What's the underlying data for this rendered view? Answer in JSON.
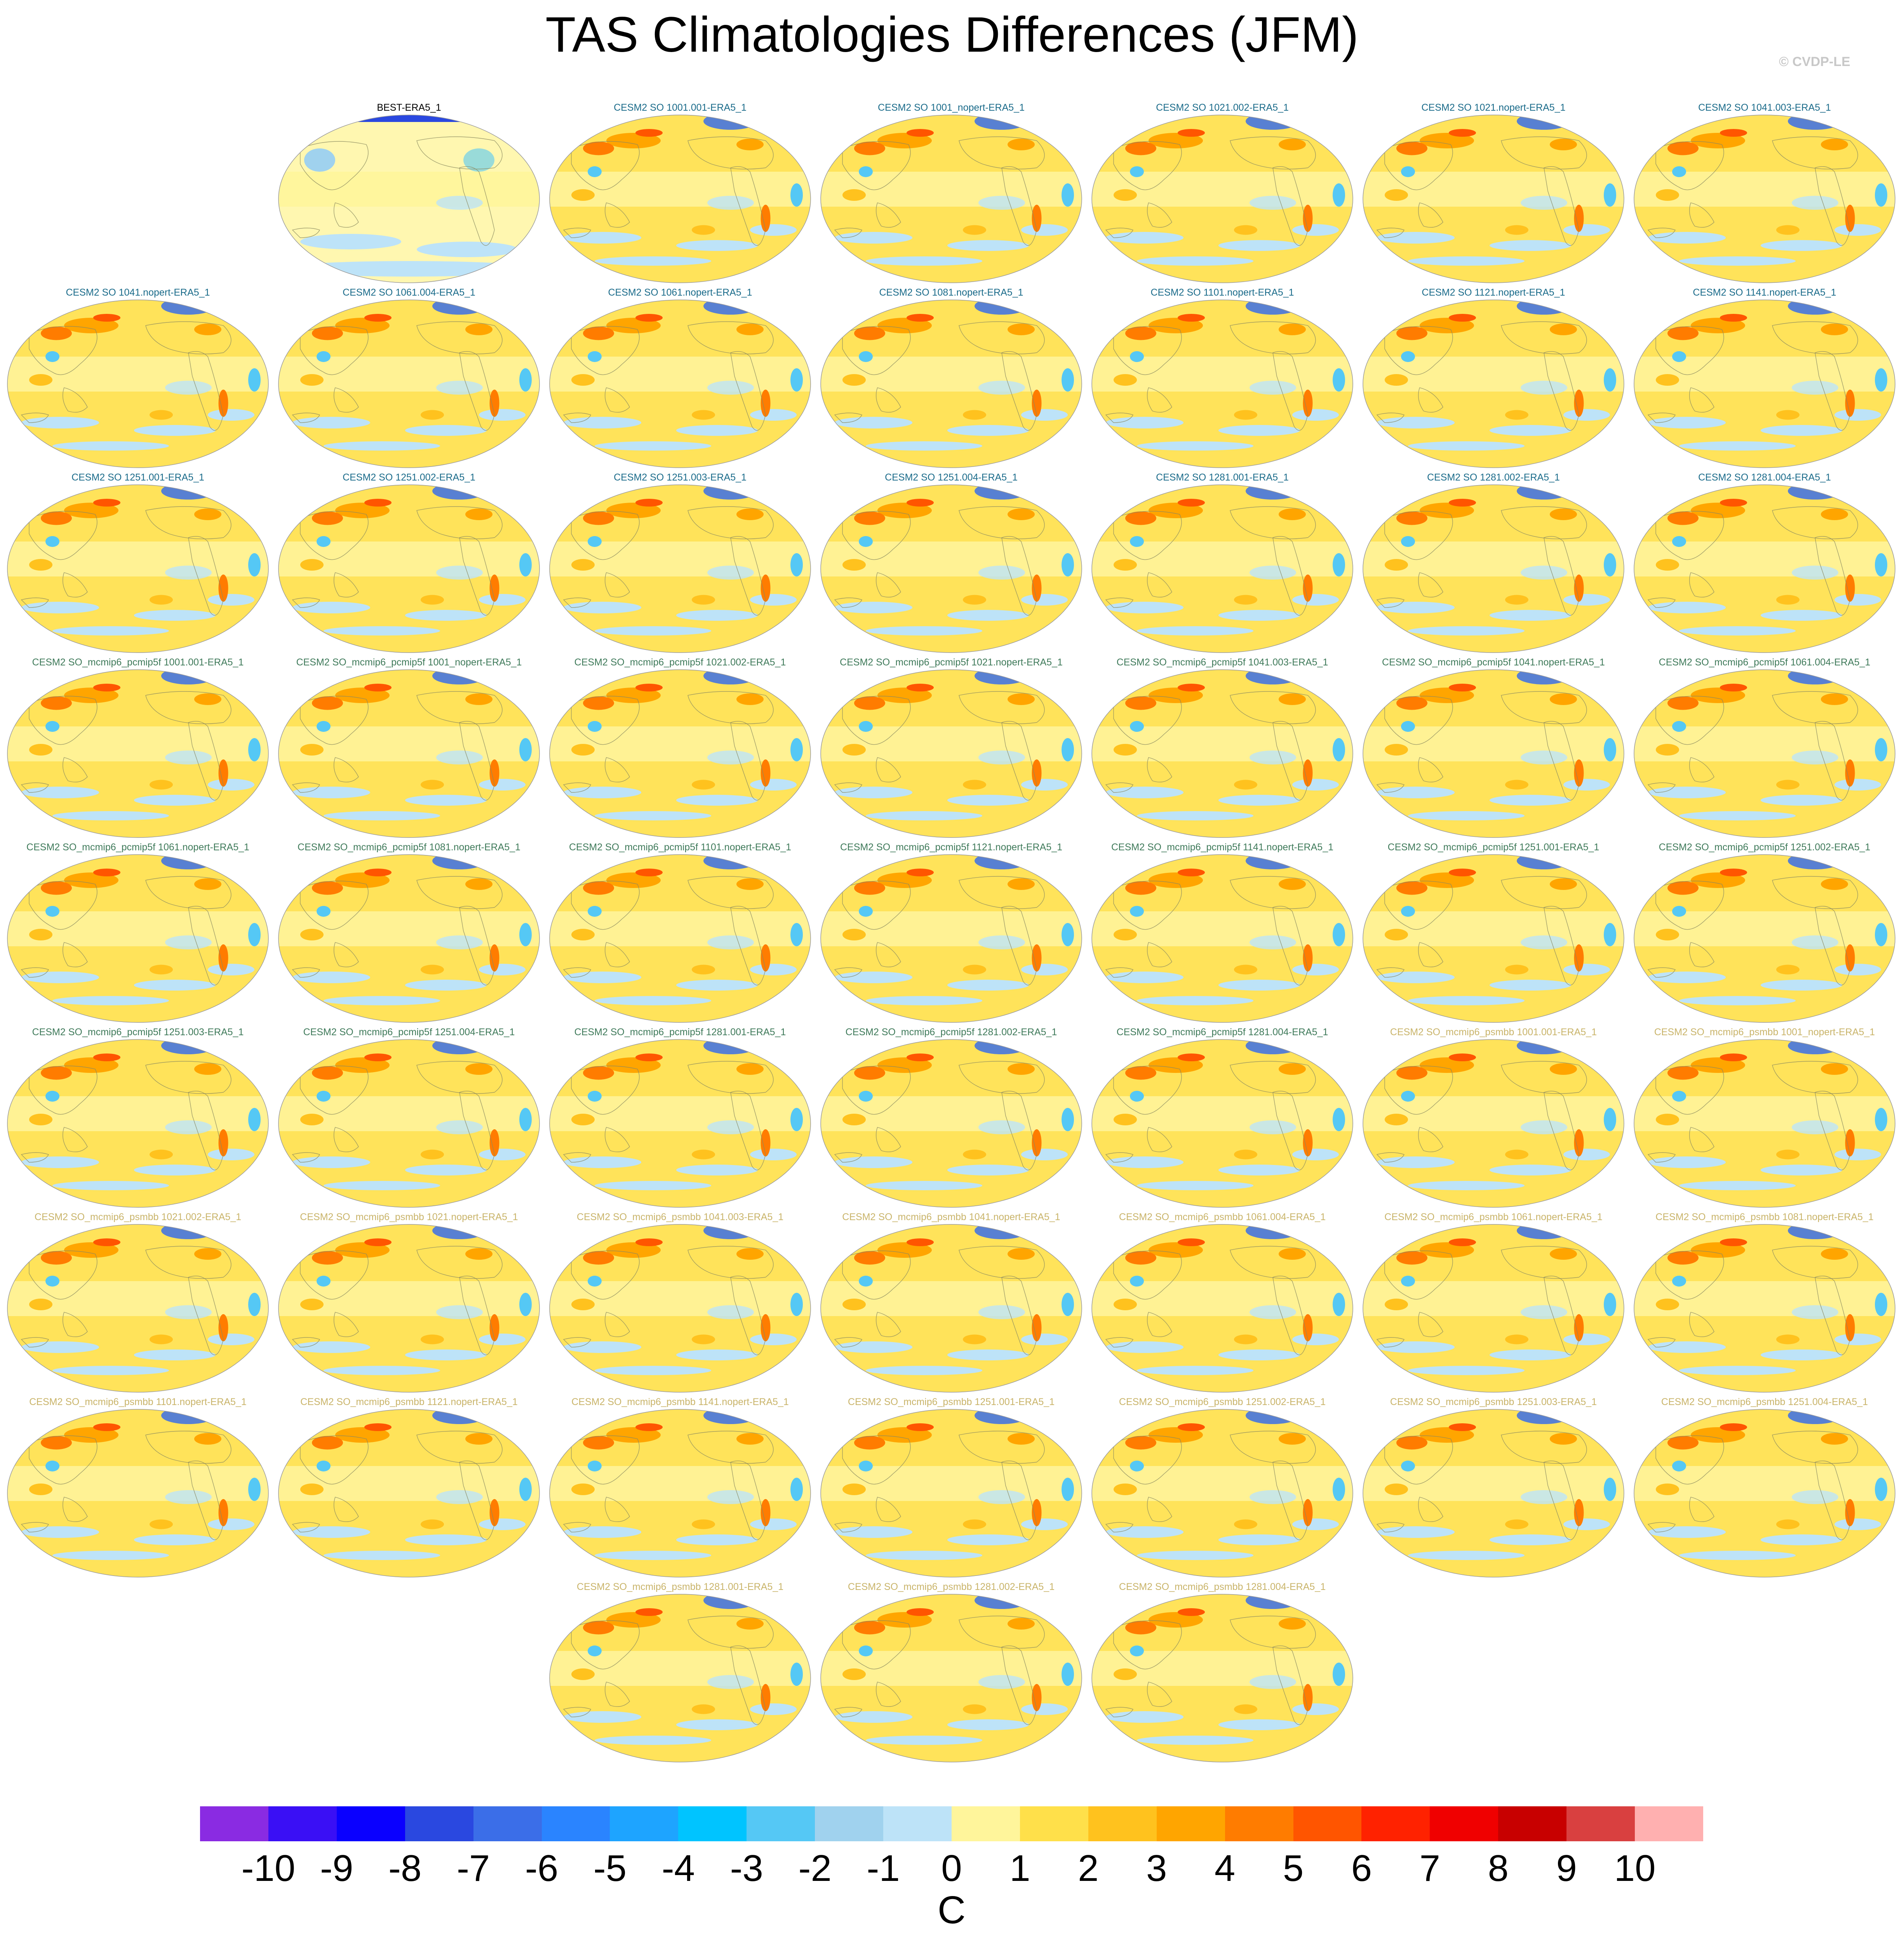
{
  "title": "TAS Climatologies Differences (JFM)",
  "copyright": "© CVDP-LE",
  "colorbar": {
    "units": "C",
    "labels": [
      "-10",
      "-9",
      "-8",
      "-7",
      "-6",
      "-5",
      "-4",
      "-3",
      "-2",
      "-1",
      "0",
      "1",
      "2",
      "3",
      "4",
      "5",
      "6",
      "7",
      "8",
      "9",
      "10"
    ],
    "colors": [
      "#8a2be2",
      "#3a0ff5",
      "#0a00ff",
      "#2a48e0",
      "#3b6ee8",
      "#2a84ff",
      "#1ea4ff",
      "#00c4ff",
      "#55c8f5",
      "#a0d2ee",
      "#bde3f8",
      "#fff59b",
      "#ffe04a",
      "#ffc21e",
      "#ffa500",
      "#ff7c00",
      "#ff5500",
      "#ff2200",
      "#f00000",
      "#c80000",
      "#d94040",
      "#ffb0b0"
    ]
  },
  "panels": [
    {
      "label": "BEST-ERA5_1",
      "style": "obs"
    },
    {
      "label": "CESM2 SO 1001.001-ERA5_1",
      "style": "a"
    },
    {
      "label": "CESM2 SO 1001_nopert-ERA5_1",
      "style": "a"
    },
    {
      "label": "CESM2 SO 1021.002-ERA5_1",
      "style": "a"
    },
    {
      "label": "CESM2 SO 1021.nopert-ERA5_1",
      "style": "a"
    },
    {
      "label": "CESM2 SO 1041.003-ERA5_1",
      "style": "a"
    },
    {
      "label": "CESM2 SO 1041.nopert-ERA5_1",
      "style": "a"
    },
    {
      "label": "CESM2 SO 1061.004-ERA5_1",
      "style": "a"
    },
    {
      "label": "CESM2 SO 1061.nopert-ERA5_1",
      "style": "a"
    },
    {
      "label": "CESM2 SO 1081.nopert-ERA5_1",
      "style": "a"
    },
    {
      "label": "CESM2 SO 1101.nopert-ERA5_1",
      "style": "a"
    },
    {
      "label": "CESM2 SO 1121.nopert-ERA5_1",
      "style": "a"
    },
    {
      "label": "CESM2 SO 1141.nopert-ERA5_1",
      "style": "a"
    },
    {
      "label": "CESM2 SO 1251.001-ERA5_1",
      "style": "a"
    },
    {
      "label": "CESM2 SO 1251.002-ERA5_1",
      "style": "a"
    },
    {
      "label": "CESM2 SO 1251.003-ERA5_1",
      "style": "a"
    },
    {
      "label": "CESM2 SO 1251.004-ERA5_1",
      "style": "a"
    },
    {
      "label": "CESM2 SO 1281.001-ERA5_1",
      "style": "a"
    },
    {
      "label": "CESM2 SO 1281.002-ERA5_1",
      "style": "a"
    },
    {
      "label": "CESM2 SO 1281.004-ERA5_1",
      "style": "a"
    },
    {
      "label": "CESM2 SO_mcmip6_pcmip5f 1001.001-ERA5_1",
      "style": "b"
    },
    {
      "label": "CESM2 SO_mcmip6_pcmip5f 1001_nopert-ERA5_1",
      "style": "b"
    },
    {
      "label": "CESM2 SO_mcmip6_pcmip5f 1021.002-ERA5_1",
      "style": "b"
    },
    {
      "label": "CESM2 SO_mcmip6_pcmip5f 1021.nopert-ERA5_1",
      "style": "b"
    },
    {
      "label": "CESM2 SO_mcmip6_pcmip5f 1041.003-ERA5_1",
      "style": "b"
    },
    {
      "label": "CESM2 SO_mcmip6_pcmip5f 1041.nopert-ERA5_1",
      "style": "b"
    },
    {
      "label": "CESM2 SO_mcmip6_pcmip5f 1061.004-ERA5_1",
      "style": "b"
    },
    {
      "label": "CESM2 SO_mcmip6_pcmip5f 1061.nopert-ERA5_1",
      "style": "b"
    },
    {
      "label": "CESM2 SO_mcmip6_pcmip5f 1081.nopert-ERA5_1",
      "style": "b"
    },
    {
      "label": "CESM2 SO_mcmip6_pcmip5f 1101.nopert-ERA5_1",
      "style": "b"
    },
    {
      "label": "CESM2 SO_mcmip6_pcmip5f 1121.nopert-ERA5_1",
      "style": "b"
    },
    {
      "label": "CESM2 SO_mcmip6_pcmip5f 1141.nopert-ERA5_1",
      "style": "b"
    },
    {
      "label": "CESM2 SO_mcmip6_pcmip5f 1251.001-ERA5_1",
      "style": "b"
    },
    {
      "label": "CESM2 SO_mcmip6_pcmip5f 1251.002-ERA5_1",
      "style": "b"
    },
    {
      "label": "CESM2 SO_mcmip6_pcmip5f 1251.003-ERA5_1",
      "style": "b"
    },
    {
      "label": "CESM2 SO_mcmip6_pcmip5f 1251.004-ERA5_1",
      "style": "b"
    },
    {
      "label": "CESM2 SO_mcmip6_pcmip5f 1281.001-ERA5_1",
      "style": "b"
    },
    {
      "label": "CESM2 SO_mcmip6_pcmip5f 1281.002-ERA5_1",
      "style": "b"
    },
    {
      "label": "CESM2 SO_mcmip6_pcmip5f 1281.004-ERA5_1",
      "style": "b"
    },
    {
      "label": "CESM2 SO_mcmip6_psmbb 1001.001-ERA5_1",
      "style": "c"
    },
    {
      "label": "CESM2 SO_mcmip6_psmbb 1001_nopert-ERA5_1",
      "style": "c"
    },
    {
      "label": "CESM2 SO_mcmip6_psmbb 1021.002-ERA5_1",
      "style": "c"
    },
    {
      "label": "CESM2 SO_mcmip6_psmbb 1021.nopert-ERA5_1",
      "style": "c"
    },
    {
      "label": "CESM2 SO_mcmip6_psmbb 1041.003-ERA5_1",
      "style": "c"
    },
    {
      "label": "CESM2 SO_mcmip6_psmbb 1041.nopert-ERA5_1",
      "style": "c"
    },
    {
      "label": "CESM2 SO_mcmip6_psmbb 1061.004-ERA5_1",
      "style": "c"
    },
    {
      "label": "CESM2 SO_mcmip6_psmbb 1061.nopert-ERA5_1",
      "style": "c"
    },
    {
      "label": "CESM2 SO_mcmip6_psmbb 1081.nopert-ERA5_1",
      "style": "c"
    },
    {
      "label": "CESM2 SO_mcmip6_psmbb 1101.nopert-ERA5_1",
      "style": "c"
    },
    {
      "label": "CESM2 SO_mcmip6_psmbb 1121.nopert-ERA5_1",
      "style": "c"
    },
    {
      "label": "CESM2 SO_mcmip6_psmbb 1141.nopert-ERA5_1",
      "style": "c"
    },
    {
      "label": "CESM2 SO_mcmip6_psmbb 1251.001-ERA5_1",
      "style": "c"
    },
    {
      "label": "CESM2 SO_mcmip6_psmbb 1251.002-ERA5_1",
      "style": "c"
    },
    {
      "label": "CESM2 SO_mcmip6_psmbb 1251.003-ERA5_1",
      "style": "c"
    },
    {
      "label": "CESM2 SO_mcmip6_psmbb 1251.004-ERA5_1",
      "style": "c"
    },
    {
      "label": "CESM2 SO_mcmip6_psmbb 1281.001-ERA5_1",
      "style": "c"
    },
    {
      "label": "CESM2 SO_mcmip6_psmbb 1281.002-ERA5_1",
      "style": "c"
    },
    {
      "label": "CESM2 SO_mcmip6_psmbb 1281.004-ERA5_1",
      "style": "c"
    }
  ],
  "label_colors": {
    "obs": "#000000",
    "a": "#1a6b8a",
    "b": "#3f7a5a",
    "c": "#c9b46a"
  }
}
